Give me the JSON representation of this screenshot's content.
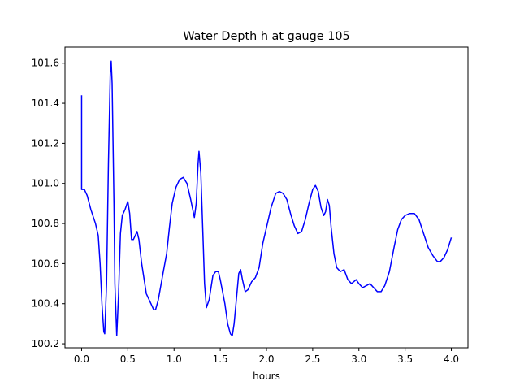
{
  "chart_data": {
    "type": "line",
    "title": "Water Depth h at gauge 105",
    "xlabel": "hours",
    "ylabel": "",
    "xlim": [
      -0.18,
      4.18
    ],
    "ylim": [
      100.18,
      101.68
    ],
    "x_ticks": [
      0.0,
      0.5,
      1.0,
      1.5,
      2.0,
      2.5,
      3.0,
      3.5,
      4.0
    ],
    "x_tick_labels": [
      "0.0",
      "0.5",
      "1.0",
      "1.5",
      "2.0",
      "2.5",
      "3.0",
      "3.5",
      "4.0"
    ],
    "y_ticks": [
      100.2,
      100.4,
      100.6,
      100.8,
      101.0,
      101.2,
      101.4,
      101.6
    ],
    "y_tick_labels": [
      "100.2",
      "100.4",
      "100.6",
      "100.8",
      "101.0",
      "101.2",
      "101.4",
      "101.6"
    ],
    "grid": false,
    "series": [
      {
        "color": "#0000ff",
        "points": [
          [
            0.0,
            101.44
          ],
          [
            0.0,
            100.97
          ],
          [
            0.03,
            100.97
          ],
          [
            0.06,
            100.94
          ],
          [
            0.1,
            100.87
          ],
          [
            0.15,
            100.8
          ],
          [
            0.18,
            100.74
          ],
          [
            0.2,
            100.6
          ],
          [
            0.22,
            100.4
          ],
          [
            0.24,
            100.26
          ],
          [
            0.25,
            100.25
          ],
          [
            0.27,
            100.5
          ],
          [
            0.29,
            101.1
          ],
          [
            0.31,
            101.55
          ],
          [
            0.32,
            101.61
          ],
          [
            0.33,
            101.5
          ],
          [
            0.35,
            100.9
          ],
          [
            0.36,
            100.5
          ],
          [
            0.38,
            100.24
          ],
          [
            0.4,
            100.45
          ],
          [
            0.42,
            100.75
          ],
          [
            0.44,
            100.84
          ],
          [
            0.47,
            100.87
          ],
          [
            0.5,
            100.91
          ],
          [
            0.52,
            100.85
          ],
          [
            0.54,
            100.72
          ],
          [
            0.56,
            100.72
          ],
          [
            0.6,
            100.76
          ],
          [
            0.62,
            100.72
          ],
          [
            0.65,
            100.6
          ],
          [
            0.7,
            100.45
          ],
          [
            0.75,
            100.4
          ],
          [
            0.78,
            100.37
          ],
          [
            0.8,
            100.37
          ],
          [
            0.83,
            100.42
          ],
          [
            0.88,
            100.55
          ],
          [
            0.92,
            100.65
          ],
          [
            0.95,
            100.78
          ],
          [
            0.98,
            100.9
          ],
          [
            1.02,
            100.98
          ],
          [
            1.06,
            101.02
          ],
          [
            1.1,
            101.03
          ],
          [
            1.14,
            101.0
          ],
          [
            1.18,
            100.92
          ],
          [
            1.22,
            100.83
          ],
          [
            1.24,
            100.9
          ],
          [
            1.26,
            101.1
          ],
          [
            1.27,
            101.16
          ],
          [
            1.29,
            101.05
          ],
          [
            1.31,
            100.78
          ],
          [
            1.33,
            100.5
          ],
          [
            1.35,
            100.38
          ],
          [
            1.38,
            100.42
          ],
          [
            1.42,
            100.54
          ],
          [
            1.45,
            100.56
          ],
          [
            1.48,
            100.56
          ],
          [
            1.5,
            100.52
          ],
          [
            1.55,
            100.4
          ],
          [
            1.58,
            100.3
          ],
          [
            1.61,
            100.25
          ],
          [
            1.63,
            100.24
          ],
          [
            1.65,
            100.3
          ],
          [
            1.68,
            100.45
          ],
          [
            1.7,
            100.55
          ],
          [
            1.72,
            100.57
          ],
          [
            1.74,
            100.52
          ],
          [
            1.77,
            100.46
          ],
          [
            1.8,
            100.47
          ],
          [
            1.84,
            100.51
          ],
          [
            1.88,
            100.53
          ],
          [
            1.92,
            100.58
          ],
          [
            1.96,
            100.7
          ],
          [
            2.0,
            100.78
          ],
          [
            2.05,
            100.88
          ],
          [
            2.1,
            100.95
          ],
          [
            2.14,
            100.96
          ],
          [
            2.18,
            100.95
          ],
          [
            2.22,
            100.92
          ],
          [
            2.26,
            100.85
          ],
          [
            2.3,
            100.79
          ],
          [
            2.34,
            100.75
          ],
          [
            2.38,
            100.76
          ],
          [
            2.42,
            100.82
          ],
          [
            2.46,
            100.9
          ],
          [
            2.5,
            100.97
          ],
          [
            2.53,
            100.99
          ],
          [
            2.56,
            100.96
          ],
          [
            2.59,
            100.88
          ],
          [
            2.62,
            100.84
          ],
          [
            2.64,
            100.86
          ],
          [
            2.66,
            100.92
          ],
          [
            2.68,
            100.89
          ],
          [
            2.7,
            100.78
          ],
          [
            2.73,
            100.65
          ],
          [
            2.76,
            100.58
          ],
          [
            2.8,
            100.56
          ],
          [
            2.84,
            100.57
          ],
          [
            2.88,
            100.52
          ],
          [
            2.92,
            100.5
          ],
          [
            2.97,
            100.52
          ],
          [
            3.0,
            100.5
          ],
          [
            3.04,
            100.48
          ],
          [
            3.08,
            100.49
          ],
          [
            3.12,
            100.5
          ],
          [
            3.16,
            100.48
          ],
          [
            3.2,
            100.46
          ],
          [
            3.24,
            100.46
          ],
          [
            3.28,
            100.49
          ],
          [
            3.33,
            100.56
          ],
          [
            3.38,
            100.68
          ],
          [
            3.42,
            100.77
          ],
          [
            3.46,
            100.82
          ],
          [
            3.5,
            100.84
          ],
          [
            3.55,
            100.85
          ],
          [
            3.6,
            100.85
          ],
          [
            3.65,
            100.82
          ],
          [
            3.7,
            100.75
          ],
          [
            3.75,
            100.68
          ],
          [
            3.8,
            100.64
          ],
          [
            3.85,
            100.61
          ],
          [
            3.88,
            100.61
          ],
          [
            3.92,
            100.63
          ],
          [
            3.96,
            100.67
          ],
          [
            4.0,
            100.73
          ]
        ]
      }
    ]
  }
}
